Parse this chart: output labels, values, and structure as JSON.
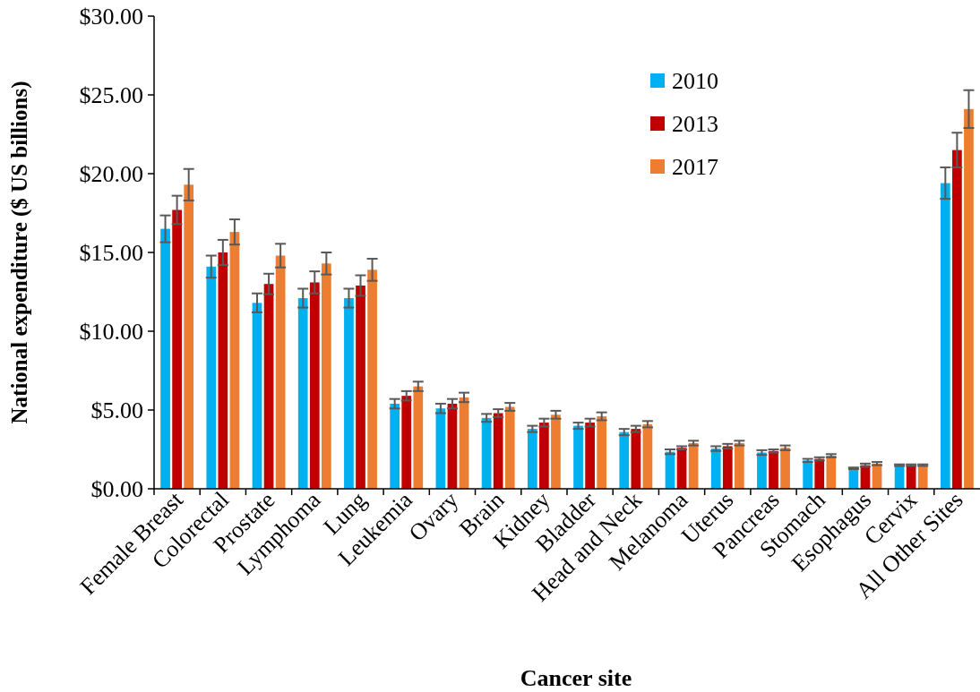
{
  "chart_data": {
    "type": "bar",
    "xlabel": "Cancer site",
    "ylabel": "National expenditure ($ US billions)",
    "categories": [
      "Female Breast",
      "Colorectal",
      "Prostate",
      "Lymphoma",
      "Lung",
      "Leukemia",
      "Ovary",
      "Brain",
      "Kidney",
      "Bladder",
      "Head and Neck",
      "Melanoma",
      "Uterus",
      "Pancreas",
      "Stomach",
      "Esophagus",
      "Cervix",
      "All Other Sites"
    ],
    "series": [
      {
        "name": "2010",
        "color": "#00b0f0",
        "values": [
          16.5,
          14.1,
          11.8,
          12.1,
          12.1,
          5.4,
          5.1,
          4.5,
          3.8,
          4.0,
          3.6,
          2.35,
          2.55,
          2.3,
          1.8,
          1.3,
          1.5,
          19.4
        ],
        "errors": [
          0.85,
          0.7,
          0.6,
          0.6,
          0.6,
          0.3,
          0.3,
          0.25,
          0.2,
          0.2,
          0.2,
          0.15,
          0.15,
          0.15,
          0.1,
          0.05,
          0.05,
          1.0
        ]
      },
      {
        "name": "2013",
        "color": "#c00000",
        "values": [
          17.7,
          15.0,
          13.0,
          13.1,
          12.9,
          5.9,
          5.4,
          4.8,
          4.2,
          4.2,
          3.8,
          2.6,
          2.7,
          2.4,
          1.9,
          1.5,
          1.5,
          21.5
        ],
        "errors": [
          0.9,
          0.8,
          0.65,
          0.7,
          0.65,
          0.3,
          0.3,
          0.25,
          0.25,
          0.25,
          0.2,
          0.1,
          0.15,
          0.1,
          0.1,
          0.1,
          0.05,
          1.1
        ]
      },
      {
        "name": "2017",
        "color": "#ed7d31",
        "values": [
          19.3,
          16.3,
          14.8,
          14.3,
          13.9,
          6.5,
          5.8,
          5.2,
          4.7,
          4.6,
          4.1,
          2.9,
          2.9,
          2.6,
          2.1,
          1.6,
          1.5,
          24.1
        ],
        "errors": [
          1.0,
          0.8,
          0.75,
          0.7,
          0.7,
          0.3,
          0.3,
          0.25,
          0.25,
          0.25,
          0.2,
          0.15,
          0.15,
          0.15,
          0.1,
          0.1,
          0.05,
          1.2
        ]
      }
    ],
    "ylim": [
      0,
      30
    ],
    "yticks": [
      {
        "value": 0,
        "label": "$0.00"
      },
      {
        "value": 5,
        "label": "$5.00"
      },
      {
        "value": 10,
        "label": "$10.00"
      },
      {
        "value": 15,
        "label": "$15.00"
      },
      {
        "value": 20,
        "label": "$20.00"
      },
      {
        "value": 25,
        "label": "$25.00"
      },
      {
        "value": 30,
        "label": "$30.00"
      }
    ],
    "legend": "top right",
    "grid": false
  }
}
